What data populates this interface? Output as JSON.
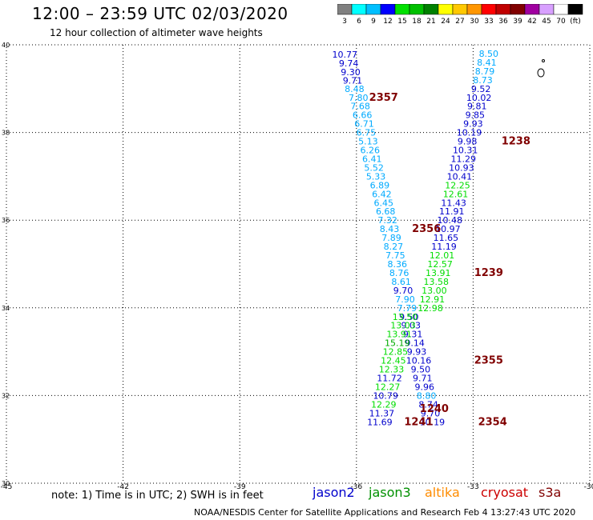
{
  "header": {
    "title": "12:00 – 23:59 UTC 02/03/2020",
    "subtitle": "12 hour collection of altimeter wave heights"
  },
  "colorbar": {
    "labels": [
      "3",
      "6",
      "9",
      "12",
      "15",
      "18",
      "21",
      "24",
      "27",
      "30",
      "33",
      "36",
      "39",
      "42",
      "45",
      "70",
      "(ft)"
    ],
    "colors": [
      "#808080",
      "#00ffff",
      "#00bfff",
      "#0000ff",
      "#00e000",
      "#00c000",
      "#008000",
      "#ffff00",
      "#ffc800",
      "#ff9600",
      "#ff0000",
      "#c00000",
      "#800000",
      "#a000a0",
      "#d8a0ff",
      "#ffffff",
      "#000000"
    ]
  },
  "note": "note:  1) Time is in UTC;  2) SWH is in feet",
  "satellites": [
    {
      "name": "jason2",
      "color": "#0000cc"
    },
    {
      "name": "jason3",
      "color": "#009000"
    },
    {
      "name": "altika",
      "color": "#ff8c00"
    },
    {
      "name": "cryosat",
      "color": "#cc0000"
    },
    {
      "name": "s3a",
      "color": "#800000"
    }
  ],
  "footer": "NOAA/NESDIS Center for Satellite Applications and Research    Feb  4 13:27:43 UTC 2020",
  "chart_data": {
    "type": "scatter",
    "xlim": [
      -45,
      -30
    ],
    "ylim": [
      30,
      40
    ],
    "x_ticks": [
      "-45",
      "-42",
      "-39",
      "-36",
      "-33",
      "-30"
    ],
    "y_ticks": [
      "40",
      "38",
      "36",
      "34",
      "32",
      "30"
    ],
    "grid": true,
    "series": [
      {
        "name": "jason2",
        "points": [
          {
            "x": -36.3,
            "y": 39.78,
            "label": "10.77",
            "color": "#0000cc"
          },
          {
            "x": -36.2,
            "y": 39.58,
            "label": "9.74",
            "color": "#0000cc"
          },
          {
            "x": -36.15,
            "y": 39.38,
            "label": "9.30",
            "color": "#0000cc"
          },
          {
            "x": -36.1,
            "y": 39.19,
            "label": "9.71",
            "color": "#0000cc"
          },
          {
            "x": -36.05,
            "y": 39.0,
            "label": "8.48",
            "color": "#00aaff"
          },
          {
            "x": -35.95,
            "y": 38.8,
            "label": "7.80",
            "color": "#00aaff"
          },
          {
            "x": -35.9,
            "y": 38.6,
            "label": "7.68",
            "color": "#00aaff"
          },
          {
            "x": -35.85,
            "y": 38.4,
            "label": "6.66",
            "color": "#00aaff"
          },
          {
            "x": -35.8,
            "y": 38.2,
            "label": "6.71",
            "color": "#00aaff"
          },
          {
            "x": -35.75,
            "y": 38.0,
            "label": "6.75",
            "color": "#00aaff"
          },
          {
            "x": -35.7,
            "y": 37.8,
            "label": "5.13",
            "color": "#00aaff"
          },
          {
            "x": -35.65,
            "y": 37.6,
            "label": "6.26",
            "color": "#00aaff"
          },
          {
            "x": -35.6,
            "y": 37.4,
            "label": "6.41",
            "color": "#00aaff"
          },
          {
            "x": -35.55,
            "y": 37.2,
            "label": "5.52",
            "color": "#00aaff"
          },
          {
            "x": -35.5,
            "y": 37.0,
            "label": "5.33",
            "color": "#00aaff"
          },
          {
            "x": -35.4,
            "y": 36.8,
            "label": "6.89",
            "color": "#00aaff"
          },
          {
            "x": -35.35,
            "y": 36.6,
            "label": "6.42",
            "color": "#00aaff"
          },
          {
            "x": -35.3,
            "y": 36.4,
            "label": "6.45",
            "color": "#00aaff"
          },
          {
            "x": -35.25,
            "y": 36.2,
            "label": "6.68",
            "color": "#00aaff"
          },
          {
            "x": -35.2,
            "y": 36.0,
            "label": "7.32",
            "color": "#00aaff"
          },
          {
            "x": -35.15,
            "y": 35.8,
            "label": "8.43",
            "color": "#00aaff"
          },
          {
            "x": -35.1,
            "y": 35.6,
            "label": "7.89",
            "color": "#00aaff"
          },
          {
            "x": -35.05,
            "y": 35.4,
            "label": "8.27",
            "color": "#00aaff"
          },
          {
            "x": -35.0,
            "y": 35.2,
            "label": "7.75",
            "color": "#00aaff"
          },
          {
            "x": -34.95,
            "y": 35.0,
            "label": "8.36",
            "color": "#00aaff"
          },
          {
            "x": -34.9,
            "y": 34.8,
            "label": "8.76",
            "color": "#00aaff"
          },
          {
            "x": -34.85,
            "y": 34.6,
            "label": "8.61",
            "color": "#00aaff"
          },
          {
            "x": -34.8,
            "y": 34.4,
            "label": "9.70",
            "color": "#0000cc"
          },
          {
            "x": -34.75,
            "y": 34.2,
            "label": "7.90",
            "color": "#00aaff"
          },
          {
            "x": -34.7,
            "y": 34.0,
            "label": "7.79",
            "color": "#00aaff"
          },
          {
            "x": -34.65,
            "y": 33.8,
            "label": "9.50",
            "color": "#0000cc"
          },
          {
            "x": -34.6,
            "y": 33.6,
            "label": "9.03",
            "color": "#0000cc"
          },
          {
            "x": -34.55,
            "y": 33.4,
            "label": "9.31",
            "color": "#0000cc"
          },
          {
            "x": -34.5,
            "y": 33.2,
            "label": "9.14",
            "color": "#0000cc"
          },
          {
            "x": -34.45,
            "y": 33.0,
            "label": "9.93",
            "color": "#0000cc"
          },
          {
            "x": -34.4,
            "y": 32.8,
            "label": "10.16",
            "color": "#0000cc"
          },
          {
            "x": -34.35,
            "y": 32.6,
            "label": "9.50",
            "color": "#0000cc"
          },
          {
            "x": -34.3,
            "y": 32.4,
            "label": "9.71",
            "color": "#0000cc"
          },
          {
            "x": -34.25,
            "y": 32.2,
            "label": "9.96",
            "color": "#0000cc"
          },
          {
            "x": -34.2,
            "y": 32.0,
            "label": "8.80",
            "color": "#00aaff"
          },
          {
            "x": -34.15,
            "y": 31.8,
            "label": "8.74",
            "color": "#0000cc"
          },
          {
            "x": -34.1,
            "y": 31.6,
            "label": "9.70",
            "color": "#0000cc"
          },
          {
            "x": -34.05,
            "y": 31.4,
            "label": "10.19",
            "color": "#0000cc"
          }
        ]
      },
      {
        "name": "jason3",
        "points": [
          {
            "x": -32.6,
            "y": 39.8,
            "label": "8.50",
            "color": "#00aaff"
          },
          {
            "x": -32.65,
            "y": 39.6,
            "label": "8.41",
            "color": "#00aaff"
          },
          {
            "x": -32.7,
            "y": 39.4,
            "label": "8.79",
            "color": "#00aaff"
          },
          {
            "x": -32.75,
            "y": 39.2,
            "label": "8.73",
            "color": "#00aaff"
          },
          {
            "x": -32.8,
            "y": 39.0,
            "label": "9.52",
            "color": "#0000cc"
          },
          {
            "x": -32.85,
            "y": 38.8,
            "label": "10.02",
            "color": "#0000cc"
          },
          {
            "x": -32.9,
            "y": 38.6,
            "label": "9.81",
            "color": "#0000cc"
          },
          {
            "x": -32.95,
            "y": 38.4,
            "label": "9.85",
            "color": "#0000cc"
          },
          {
            "x": -33.0,
            "y": 38.2,
            "label": "9.93",
            "color": "#0000cc"
          },
          {
            "x": -33.1,
            "y": 38.0,
            "label": "10.19",
            "color": "#0000cc"
          },
          {
            "x": -33.15,
            "y": 37.8,
            "label": "9.98",
            "color": "#0000cc"
          },
          {
            "x": -33.2,
            "y": 37.6,
            "label": "10.31",
            "color": "#0000cc"
          },
          {
            "x": -33.25,
            "y": 37.4,
            "label": "11.29",
            "color": "#0000cc"
          },
          {
            "x": -33.3,
            "y": 37.2,
            "label": "10.93",
            "color": "#0000cc"
          },
          {
            "x": -33.35,
            "y": 37.0,
            "label": "10.41",
            "color": "#0000cc"
          },
          {
            "x": -33.4,
            "y": 36.8,
            "label": "12.25",
            "color": "#00dd00"
          },
          {
            "x": -33.45,
            "y": 36.6,
            "label": "12.61",
            "color": "#00dd00"
          },
          {
            "x": -33.5,
            "y": 36.4,
            "label": "11.43",
            "color": "#0000cc"
          },
          {
            "x": -33.55,
            "y": 36.2,
            "label": "11.91",
            "color": "#0000cc"
          },
          {
            "x": -33.6,
            "y": 36.0,
            "label": "10.48",
            "color": "#0000cc"
          },
          {
            "x": -33.65,
            "y": 35.8,
            "label": "10.97",
            "color": "#0000cc"
          },
          {
            "x": -33.7,
            "y": 35.6,
            "label": "11.65",
            "color": "#0000cc"
          },
          {
            "x": -33.75,
            "y": 35.4,
            "label": "11.19",
            "color": "#0000cc"
          },
          {
            "x": -33.8,
            "y": 35.2,
            "label": "12.01",
            "color": "#00dd00"
          },
          {
            "x": -33.85,
            "y": 35.0,
            "label": "12.57",
            "color": "#00dd00"
          },
          {
            "x": -33.9,
            "y": 34.8,
            "label": "13.91",
            "color": "#00dd00"
          },
          {
            "x": -33.95,
            "y": 34.6,
            "label": "13.58",
            "color": "#00dd00"
          },
          {
            "x": -34.0,
            "y": 34.4,
            "label": "13.00",
            "color": "#00dd00"
          },
          {
            "x": -34.05,
            "y": 34.2,
            "label": "12.91",
            "color": "#00dd00"
          },
          {
            "x": -34.1,
            "y": 34.0,
            "label": "12.98",
            "color": "#00dd00"
          },
          {
            "x": -34.75,
            "y": 33.8,
            "label": "13.50",
            "color": "#00dd00"
          },
          {
            "x": -34.8,
            "y": 33.6,
            "label": "13.03",
            "color": "#00dd00"
          },
          {
            "x": -34.9,
            "y": 33.4,
            "label": "13.91",
            "color": "#00dd00"
          },
          {
            "x": -34.95,
            "y": 33.2,
            "label": "15.19",
            "color": "#00aa00"
          },
          {
            "x": -35.0,
            "y": 33.0,
            "label": "12.85",
            "color": "#00dd00"
          },
          {
            "x": -35.05,
            "y": 32.8,
            "label": "12.45",
            "color": "#00dd00"
          },
          {
            "x": -35.1,
            "y": 32.6,
            "label": "12.33",
            "color": "#00dd00"
          },
          {
            "x": -35.15,
            "y": 32.4,
            "label": "11.72",
            "color": "#0000cc"
          },
          {
            "x": -35.2,
            "y": 32.2,
            "label": "12.27",
            "color": "#00dd00"
          },
          {
            "x": -35.25,
            "y": 32.0,
            "label": "10.79",
            "color": "#0000cc"
          },
          {
            "x": -35.3,
            "y": 31.8,
            "label": "12.29",
            "color": "#00dd00"
          },
          {
            "x": -35.35,
            "y": 31.6,
            "label": "11.37",
            "color": "#0000cc"
          },
          {
            "x": -35.4,
            "y": 31.4,
            "label": "11.69",
            "color": "#0000cc"
          }
        ]
      },
      {
        "name": "s3a",
        "points": [
          {
            "x": -35.3,
            "y": 38.8,
            "label": "2357",
            "color": "#800000"
          },
          {
            "x": -31.9,
            "y": 37.8,
            "label": "1238",
            "color": "#800000"
          },
          {
            "x": -34.2,
            "y": 35.8,
            "label": "2356",
            "color": "#800000"
          },
          {
            "x": -32.6,
            "y": 34.8,
            "label": "1239",
            "color": "#800000"
          },
          {
            "x": -32.6,
            "y": 32.8,
            "label": "2355",
            "color": "#800000"
          },
          {
            "x": -34.0,
            "y": 31.7,
            "label": "1240",
            "color": "#800000"
          },
          {
            "x": -34.4,
            "y": 31.4,
            "label": "1241",
            "color": "#800000"
          },
          {
            "x": -32.5,
            "y": 31.4,
            "label": "2354",
            "color": "#800000"
          }
        ]
      }
    ]
  }
}
